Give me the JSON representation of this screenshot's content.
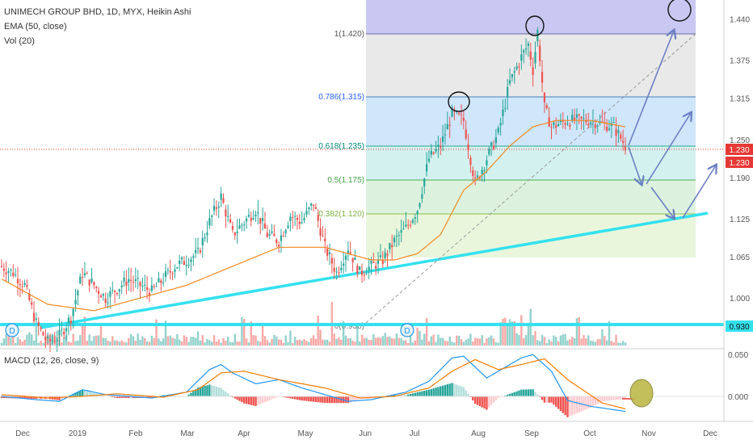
{
  "legend": {
    "symbol_line": "UNIMECH GROUP BHD, 1D, MYX, Heikin Ashi",
    "ema_label": "EMA (50, close)",
    "vol_label": "Vol (20)",
    "macd_label": "MACD (12, 26, close, 9)"
  },
  "colors": {
    "up": "#26a69a",
    "down": "#ef5350",
    "ema": "#f0891f",
    "macd_line": "#2196f3",
    "signal_line": "#f57c00",
    "trendline": "#34e1ef",
    "arrow": "#6b7fc2",
    "price_marker": "#e53935",
    "support_marker": "#34e1ef"
  },
  "markers": {
    "dividend_1": "D",
    "dividend_2": "D"
  },
  "chart_data": {
    "type": "candlestick",
    "price_axis": {
      "ticks": [
        "1.440",
        "1.375",
        "1.315",
        "1.250",
        "1.190",
        "1.125",
        "1.065",
        "1.000",
        "0.930"
      ],
      "ylim": [
        0.92,
        1.47
      ]
    },
    "macd_axis": {
      "ticks": [
        "0.050",
        "0.000"
      ],
      "ylim": [
        -0.03,
        0.055
      ]
    },
    "time_axis": {
      "ticks": [
        "Dec",
        "2019",
        "Feb",
        "Mar",
        "Apr",
        "May",
        "Jun",
        "Jul",
        "Aug",
        "Sep",
        "Oct",
        "Nov",
        "Dec"
      ]
    },
    "last_price": "1.230",
    "last_price_2": "1.230",
    "support_price": "0.930",
    "fibonacci": [
      {
        "ratio": 1,
        "label": "1(1.420)",
        "price": 1.42
      },
      {
        "ratio": 0.786,
        "label": "0.786(1.315)",
        "price": 1.315
      },
      {
        "ratio": 0.618,
        "label": "0.618(1.235)",
        "price": 1.235
      },
      {
        "ratio": 0.5,
        "label": "0.5(1.175)",
        "price": 1.175
      },
      {
        "ratio": 0.382,
        "label": "0.382(1.120)",
        "price": 1.12
      },
      {
        "ratio": 0,
        "label": "0(0.930)",
        "price": 0.93
      }
    ],
    "ohlc_keyframes": [
      [
        0,
        1.05
      ],
      [
        5,
        1.04
      ],
      [
        10,
        1.02
      ],
      [
        15,
        0.96
      ],
      [
        20,
        0.93
      ],
      [
        25,
        0.94
      ],
      [
        30,
        0.97
      ],
      [
        35,
        1.04
      ],
      [
        40,
        1.02
      ],
      [
        45,
        1.0
      ],
      [
        55,
        1.03
      ],
      [
        65,
        1.01
      ],
      [
        75,
        1.05
      ],
      [
        85,
        1.07
      ],
      [
        90,
        1.12
      ],
      [
        95,
        1.16
      ],
      [
        100,
        1.1
      ],
      [
        105,
        1.12
      ],
      [
        110,
        1.14
      ],
      [
        115,
        1.1
      ],
      [
        120,
        1.09
      ],
      [
        125,
        1.13
      ],
      [
        130,
        1.12
      ],
      [
        135,
        1.15
      ],
      [
        140,
        1.08
      ],
      [
        145,
        1.04
      ],
      [
        150,
        1.08
      ],
      [
        155,
        1.04
      ],
      [
        160,
        1.05
      ],
      [
        165,
        1.06
      ],
      [
        170,
        1.09
      ],
      [
        175,
        1.11
      ],
      [
        180,
        1.14
      ],
      [
        185,
        1.22
      ],
      [
        190,
        1.24
      ],
      [
        195,
        1.29
      ],
      [
        200,
        1.28
      ],
      [
        205,
        1.18
      ],
      [
        210,
        1.22
      ],
      [
        215,
        1.26
      ],
      [
        220,
        1.34
      ],
      [
        225,
        1.38
      ],
      [
        228,
        1.4
      ],
      [
        230,
        1.36
      ],
      [
        232,
        1.42
      ],
      [
        235,
        1.3
      ],
      [
        238,
        1.27
      ],
      [
        245,
        1.28
      ],
      [
        255,
        1.28
      ],
      [
        265,
        1.27
      ],
      [
        270,
        1.24
      ]
    ],
    "ema_keyframes": [
      [
        0,
        1.03
      ],
      [
        20,
        0.99
      ],
      [
        40,
        0.98
      ],
      [
        60,
        1.0
      ],
      [
        80,
        1.02
      ],
      [
        100,
        1.05
      ],
      [
        120,
        1.08
      ],
      [
        140,
        1.08
      ],
      [
        160,
        1.06
      ],
      [
        170,
        1.06
      ],
      [
        180,
        1.07
      ],
      [
        190,
        1.1
      ],
      [
        200,
        1.17
      ],
      [
        210,
        1.2
      ],
      [
        220,
        1.24
      ],
      [
        230,
        1.27
      ],
      [
        240,
        1.28
      ],
      [
        255,
        1.28
      ],
      [
        270,
        1.27
      ]
    ],
    "macd_keyframes": [
      [
        0,
        0.0
      ],
      [
        15,
        -0.004
      ],
      [
        25,
        -0.006
      ],
      [
        35,
        0.008
      ],
      [
        45,
        0.002
      ],
      [
        65,
        -0.002
      ],
      [
        80,
        0.005
      ],
      [
        90,
        0.032
      ],
      [
        95,
        0.038
      ],
      [
        100,
        0.028
      ],
      [
        110,
        0.015
      ],
      [
        120,
        0.02
      ],
      [
        130,
        0.01
      ],
      [
        140,
        0.002
      ],
      [
        150,
        -0.006
      ],
      [
        160,
        -0.004
      ],
      [
        175,
        0.005
      ],
      [
        185,
        0.018
      ],
      [
        195,
        0.046
      ],
      [
        200,
        0.048
      ],
      [
        205,
        0.035
      ],
      [
        210,
        0.022
      ],
      [
        215,
        0.03
      ],
      [
        225,
        0.046
      ],
      [
        230,
        0.05
      ],
      [
        238,
        0.03
      ],
      [
        245,
        -0.005
      ],
      [
        255,
        -0.012
      ],
      [
        270,
        -0.018
      ]
    ],
    "signal_keyframes": [
      [
        0,
        0.002
      ],
      [
        20,
        -0.002
      ],
      [
        35,
        0.0
      ],
      [
        50,
        0.003
      ],
      [
        70,
        -0.001
      ],
      [
        85,
        0.008
      ],
      [
        95,
        0.028
      ],
      [
        105,
        0.03
      ],
      [
        120,
        0.02
      ],
      [
        140,
        0.01
      ],
      [
        155,
        -0.002
      ],
      [
        170,
        0.0
      ],
      [
        185,
        0.01
      ],
      [
        195,
        0.03
      ],
      [
        205,
        0.044
      ],
      [
        215,
        0.032
      ],
      [
        225,
        0.038
      ],
      [
        235,
        0.045
      ],
      [
        245,
        0.02
      ],
      [
        260,
        -0.008
      ],
      [
        270,
        -0.015
      ]
    ]
  }
}
